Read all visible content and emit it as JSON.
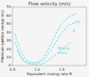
{
  "chart_data": {
    "type": "line",
    "title": "Flow velocity (m/s)",
    "x_label": "Equivalent mixing ratio R",
    "y_label": "Minimum ignition energy (mJ)",
    "xlim": [
      0.5,
      2.0
    ],
    "ylim": [
      0,
      70
    ],
    "xticks": [
      0.5,
      {
        "value": 1,
        "label": "1.0"
      },
      1.5
    ],
    "yticks": [
      0,
      10,
      20,
      30,
      40,
      50,
      60,
      70
    ],
    "color": "#5bcfdf",
    "line_style": "dashed",
    "series": [
      {
        "x": [
          0.55,
          0.6,
          0.65,
          0.7,
          0.75,
          0.8,
          0.85,
          0.9,
          0.95,
          1.0,
          1.05,
          1.1,
          1.15,
          1.2,
          1.3,
          1.4,
          1.5,
          1.6,
          1.7,
          1.8
        ],
        "values": [
          38,
          28,
          20,
          14,
          9,
          6,
          4.5,
          3.5,
          3.5,
          4,
          5.5,
          8,
          12,
          17,
          28,
          40,
          50,
          56,
          60,
          62
        ]
      },
      {
        "x": [
          0.55,
          0.6,
          0.65,
          0.7,
          0.75,
          0.8,
          0.85,
          0.9,
          0.95,
          1.0,
          1.05,
          1.1,
          1.15,
          1.2,
          1.3,
          1.4,
          1.5,
          1.6,
          1.7,
          1.8
        ],
        "values": [
          28,
          20,
          13,
          8.5,
          5.5,
          3.5,
          2.5,
          2.0,
          2.0,
          2.5,
          3.5,
          5.5,
          8,
          12,
          20,
          30,
          39,
          46,
          50,
          52
        ]
      },
      {
        "x": [
          0.6,
          0.65,
          0.7,
          0.75,
          0.8,
          0.85,
          0.9,
          0.95,
          1.0,
          1.05,
          1.1,
          1.15,
          1.2,
          1.3,
          1.4,
          1.5,
          1.6,
          1.7
        ],
        "values": [
          18,
          12,
          7.5,
          4.5,
          2.8,
          1.8,
          1.3,
          1.0,
          1.0,
          1.3,
          2.0,
          3.2,
          5.0,
          9,
          14,
          19,
          24,
          28
        ]
      }
    ],
    "annotations": [
      {
        "text": "10",
        "x": 1.78,
        "y": 52
      },
      {
        "text": "6",
        "x": 1.72,
        "y": 42
      },
      {
        "text": "Mixing\nstatic",
        "x": 1.42,
        "y": 18
      }
    ]
  }
}
